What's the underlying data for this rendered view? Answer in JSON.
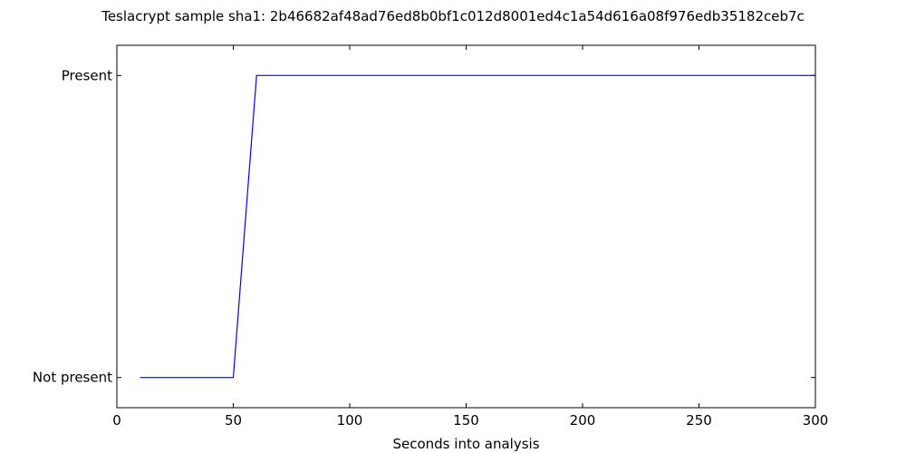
{
  "chart_data": {
    "type": "line",
    "title": "Teslacrypt sample sha1: 2b46682af48ad76ed8b0bf1c012d8001ed4c1a54d616a08f976edb35182ceb7c",
    "xlabel": "Seconds into analysis",
    "ylabel": "",
    "xlim": [
      0,
      300
    ],
    "ylim": [
      -0.1,
      1.1
    ],
    "x_ticks": [
      0,
      50,
      100,
      150,
      200,
      250,
      300
    ],
    "x_tick_labels": [
      "0",
      "50",
      "100",
      "150",
      "200",
      "250",
      "300"
    ],
    "y_ticks": [
      0,
      1
    ],
    "y_tick_labels": [
      "Not present",
      "Present"
    ],
    "grid": false,
    "series": [
      {
        "color": "#0000ff",
        "x": [
          10,
          50,
          60,
          300
        ],
        "y": [
          0,
          0,
          1,
          1
        ]
      }
    ]
  }
}
